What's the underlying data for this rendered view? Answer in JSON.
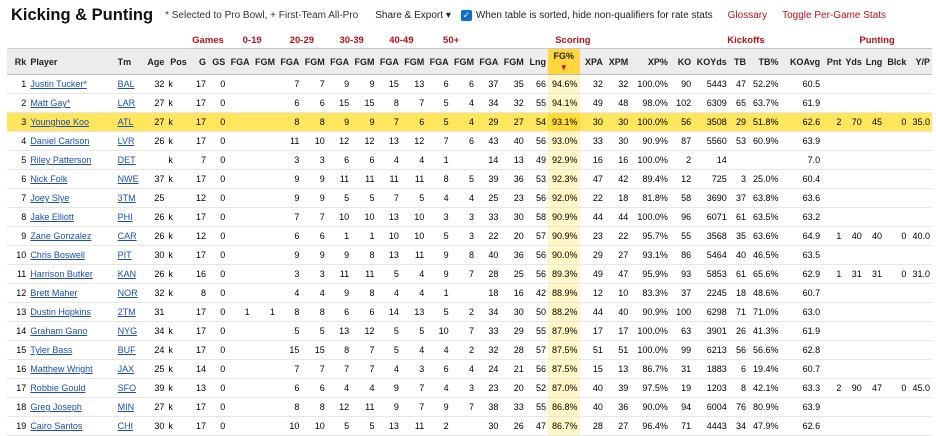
{
  "header": {
    "title": "Kicking & Punting",
    "note": "* Selected to Pro Bowl, + First-Team All-Pro",
    "share_label": "Share & Export",
    "checkbox_label": "When table is sorted, hide non-qualifiers for rate stats",
    "glossary_label": "Glossary",
    "toggle_label": "Toggle Per-Game Stats"
  },
  "table": {
    "over_headers": [
      "Games",
      "0-19",
      "20-29",
      "30-39",
      "40-49",
      "50+",
      "Scoring",
      "Kickoffs",
      "Punting"
    ],
    "columns": [
      "Rk",
      "Player",
      "Tm",
      "Age",
      "Pos",
      "G",
      "GS",
      "FGA",
      "FGM",
      "FGA",
      "FGM",
      "FGA",
      "FGM",
      "FGA",
      "FGM",
      "FGA",
      "FGM",
      "FGA",
      "FGM",
      "Lng",
      "FG%",
      "XPA",
      "XPM",
      "XP%",
      "KO",
      "KOYds",
      "TB",
      "TB%",
      "KOAvg",
      "Pnt",
      "Yds",
      "Lng",
      "Blck",
      "Y/P"
    ],
    "sort_indicator": "▼",
    "highlight_rank": "3",
    "rows": [
      [
        "1",
        "Justin Tucker*",
        "BAL",
        "32",
        "k",
        "17",
        "0",
        "",
        "",
        "7",
        "7",
        "9",
        "9",
        "15",
        "13",
        "6",
        "6",
        "37",
        "35",
        "66",
        "94.6%",
        "32",
        "32",
        "100.0%",
        "90",
        "5443",
        "47",
        "52.2%",
        "60.5",
        "",
        "",
        "",
        "",
        ""
      ],
      [
        "2",
        "Matt Gay*",
        "LAR",
        "27",
        "k",
        "17",
        "0",
        "",
        "",
        "6",
        "6",
        "15",
        "15",
        "8",
        "7",
        "5",
        "4",
        "34",
        "32",
        "55",
        "94.1%",
        "49",
        "48",
        "98.0%",
        "102",
        "6309",
        "65",
        "63.7%",
        "61.9",
        "",
        "",
        "",
        "",
        ""
      ],
      [
        "3",
        "Younghoe Koo",
        "ATL",
        "27",
        "k",
        "17",
        "0",
        "",
        "",
        "8",
        "8",
        "9",
        "9",
        "7",
        "6",
        "5",
        "4",
        "29",
        "27",
        "54",
        "93.1%",
        "30",
        "30",
        "100.0%",
        "56",
        "3508",
        "29",
        "51.8%",
        "62.6",
        "2",
        "70",
        "45",
        "0",
        "35.0"
      ],
      [
        "4",
        "Daniel Carlson",
        "LVR",
        "26",
        "k",
        "17",
        "0",
        "",
        "",
        "11",
        "10",
        "12",
        "12",
        "13",
        "12",
        "7",
        "6",
        "43",
        "40",
        "56",
        "93.0%",
        "33",
        "30",
        "90.9%",
        "87",
        "5560",
        "53",
        "60.9%",
        "63.9",
        "",
        "",
        "",
        "",
        ""
      ],
      [
        "5",
        "Riley Patterson",
        "DET",
        "",
        "k",
        "7",
        "0",
        "",
        "",
        "3",
        "3",
        "6",
        "6",
        "4",
        "4",
        "1",
        "",
        "14",
        "13",
        "49",
        "92.9%",
        "16",
        "16",
        "100.0%",
        "2",
        "14",
        "",
        "",
        "7.0",
        "",
        "",
        "",
        "",
        ""
      ],
      [
        "6",
        "Nick Folk",
        "NWE",
        "37",
        "k",
        "17",
        "0",
        "",
        "",
        "9",
        "9",
        "11",
        "11",
        "11",
        "11",
        "8",
        "5",
        "39",
        "36",
        "53",
        "92.3%",
        "47",
        "42",
        "89.4%",
        "12",
        "725",
        "3",
        "25.0%",
        "60.4",
        "",
        "",
        "",
        "",
        ""
      ],
      [
        "7",
        "Joey Slye",
        "3TM",
        "25",
        "",
        "12",
        "0",
        "",
        "",
        "9",
        "9",
        "5",
        "5",
        "7",
        "5",
        "4",
        "4",
        "25",
        "23",
        "56",
        "92.0%",
        "22",
        "18",
        "81.8%",
        "58",
        "3690",
        "37",
        "63.8%",
        "63.6",
        "",
        "",
        "",
        "",
        ""
      ],
      [
        "8",
        "Jake Elliott",
        "PHI",
        "26",
        "k",
        "17",
        "0",
        "",
        "",
        "7",
        "7",
        "10",
        "10",
        "13",
        "10",
        "3",
        "3",
        "33",
        "30",
        "58",
        "90.9%",
        "44",
        "44",
        "100.0%",
        "96",
        "6071",
        "61",
        "63.5%",
        "63.2",
        "",
        "",
        "",
        "",
        ""
      ],
      [
        "9",
        "Zane Gonzalez",
        "CAR",
        "26",
        "k",
        "12",
        "0",
        "",
        "",
        "6",
        "6",
        "1",
        "1",
        "10",
        "10",
        "5",
        "3",
        "22",
        "20",
        "57",
        "90.9%",
        "23",
        "22",
        "95.7%",
        "55",
        "3568",
        "35",
        "63.6%",
        "64.9",
        "1",
        "40",
        "40",
        "0",
        "40.0"
      ],
      [
        "10",
        "Chris Boswell",
        "PIT",
        "30",
        "k",
        "17",
        "0",
        "",
        "",
        "9",
        "9",
        "9",
        "8",
        "13",
        "11",
        "9",
        "8",
        "40",
        "36",
        "56",
        "90.0%",
        "29",
        "27",
        "93.1%",
        "86",
        "5464",
        "40",
        "46.5%",
        "63.5",
        "",
        "",
        "",
        "",
        ""
      ],
      [
        "11",
        "Harrison Butker",
        "KAN",
        "26",
        "k",
        "16",
        "0",
        "",
        "",
        "3",
        "3",
        "11",
        "11",
        "5",
        "4",
        "9",
        "7",
        "28",
        "25",
        "56",
        "89.3%",
        "49",
        "47",
        "95.9%",
        "93",
        "5853",
        "61",
        "65.6%",
        "62.9",
        "1",
        "31",
        "31",
        "0",
        "31.0"
      ],
      [
        "12",
        "Brett Maher",
        "NOR",
        "32",
        "k",
        "8",
        "0",
        "",
        "",
        "4",
        "4",
        "9",
        "8",
        "4",
        "4",
        "1",
        "",
        "18",
        "16",
        "42",
        "88.9%",
        "12",
        "10",
        "83.3%",
        "37",
        "2245",
        "18",
        "48.6%",
        "60.7",
        "",
        "",
        "",
        "",
        ""
      ],
      [
        "13",
        "Dustin Hopkins",
        "2TM",
        "31",
        "",
        "17",
        "0",
        "1",
        "1",
        "8",
        "8",
        "6",
        "6",
        "14",
        "13",
        "5",
        "2",
        "34",
        "30",
        "50",
        "88.2%",
        "44",
        "40",
        "90.9%",
        "100",
        "6298",
        "71",
        "71.0%",
        "63.0",
        "",
        "",
        "",
        "",
        ""
      ],
      [
        "14",
        "Graham Gano",
        "NYG",
        "34",
        "k",
        "17",
        "0",
        "",
        "",
        "5",
        "5",
        "13",
        "12",
        "5",
        "5",
        "10",
        "7",
        "33",
        "29",
        "55",
        "87.9%",
        "17",
        "17",
        "100.0%",
        "63",
        "3901",
        "26",
        "41.3%",
        "61.9",
        "",
        "",
        "",
        "",
        ""
      ],
      [
        "15",
        "Tyler Bass",
        "BUF",
        "24",
        "k",
        "17",
        "0",
        "",
        "",
        "15",
        "15",
        "8",
        "7",
        "5",
        "4",
        "4",
        "2",
        "32",
        "28",
        "57",
        "87.5%",
        "51",
        "51",
        "100.0%",
        "99",
        "6213",
        "56",
        "56.6%",
        "62.8",
        "",
        "",
        "",
        "",
        ""
      ],
      [
        "16",
        "Matthew Wright",
        "JAX",
        "25",
        "k",
        "14",
        "0",
        "",
        "",
        "7",
        "7",
        "7",
        "7",
        "4",
        "3",
        "6",
        "4",
        "24",
        "21",
        "56",
        "87.5%",
        "15",
        "13",
        "86.7%",
        "31",
        "1883",
        "6",
        "19.4%",
        "60.7",
        "",
        "",
        "",
        "",
        ""
      ],
      [
        "17",
        "Robbie Gould",
        "SFO",
        "39",
        "k",
        "13",
        "0",
        "",
        "",
        "6",
        "6",
        "4",
        "4",
        "9",
        "7",
        "4",
        "3",
        "23",
        "20",
        "52",
        "87.0%",
        "40",
        "39",
        "97.5%",
        "19",
        "1203",
        "8",
        "42.1%",
        "63.3",
        "2",
        "90",
        "47",
        "0",
        "45.0"
      ],
      [
        "18",
        "Greg Joseph",
        "MIN",
        "27",
        "k",
        "17",
        "0",
        "",
        "",
        "8",
        "8",
        "12",
        "11",
        "9",
        "7",
        "9",
        "7",
        "38",
        "33",
        "55",
        "86.8%",
        "40",
        "36",
        "90.0%",
        "94",
        "6004",
        "76",
        "80.9%",
        "63.9",
        "",
        "",
        "",
        "",
        ""
      ],
      [
        "19",
        "Cairo Santos",
        "CHI",
        "30",
        "k",
        "17",
        "0",
        "",
        "",
        "10",
        "10",
        "5",
        "5",
        "13",
        "11",
        "2",
        "",
        "30",
        "26",
        "47",
        "86.7%",
        "28",
        "27",
        "96.4%",
        "71",
        "4443",
        "34",
        "47.9%",
        "62.6",
        "",
        "",
        "",
        "",
        ""
      ]
    ]
  }
}
